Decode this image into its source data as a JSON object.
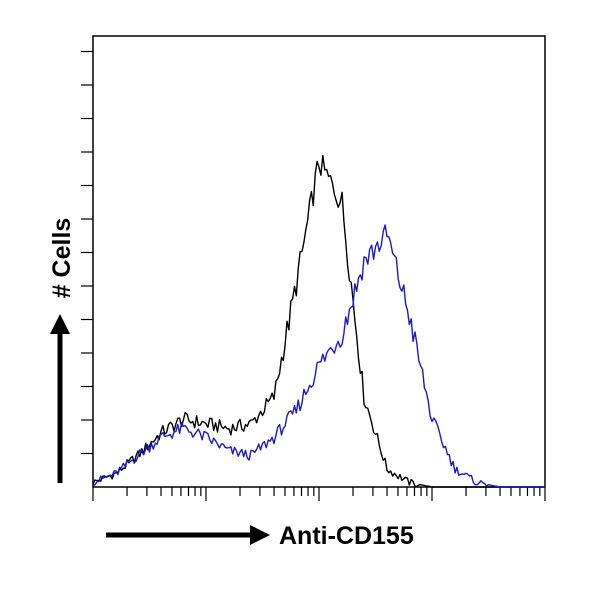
{
  "chart_data": {
    "type": "line",
    "title": "",
    "xlabel": "Anti-CD155",
    "ylabel": "# Cells",
    "x_scale": "log",
    "xlim": [
      1,
      10000
    ],
    "ylim": [
      0,
      100
    ],
    "grid": false,
    "legend": "none",
    "x": [
      1,
      1.6,
      2.5,
      4,
      6.3,
      10,
      16,
      25,
      40,
      63,
      100,
      160,
      250,
      400,
      630,
      1000,
      1600,
      2500,
      4000,
      6300,
      10000
    ],
    "series": [
      {
        "color": "#000000",
        "values": [
          1,
          3,
          7,
          12,
          15,
          14,
          13,
          14,
          20,
          45,
          72,
          63,
          20,
          4,
          1,
          0,
          0,
          0,
          0,
          0,
          0
        ]
      },
      {
        "color": "#1a1acc",
        "values": [
          1,
          3,
          7,
          11,
          13,
          11,
          8,
          7,
          11,
          17,
          27,
          34,
          50,
          56,
          38,
          15,
          4,
          1,
          0,
          0,
          0
        ]
      }
    ],
    "style": {
      "frame_color": "#000000",
      "axis_arrow_color": "#000000"
    }
  }
}
